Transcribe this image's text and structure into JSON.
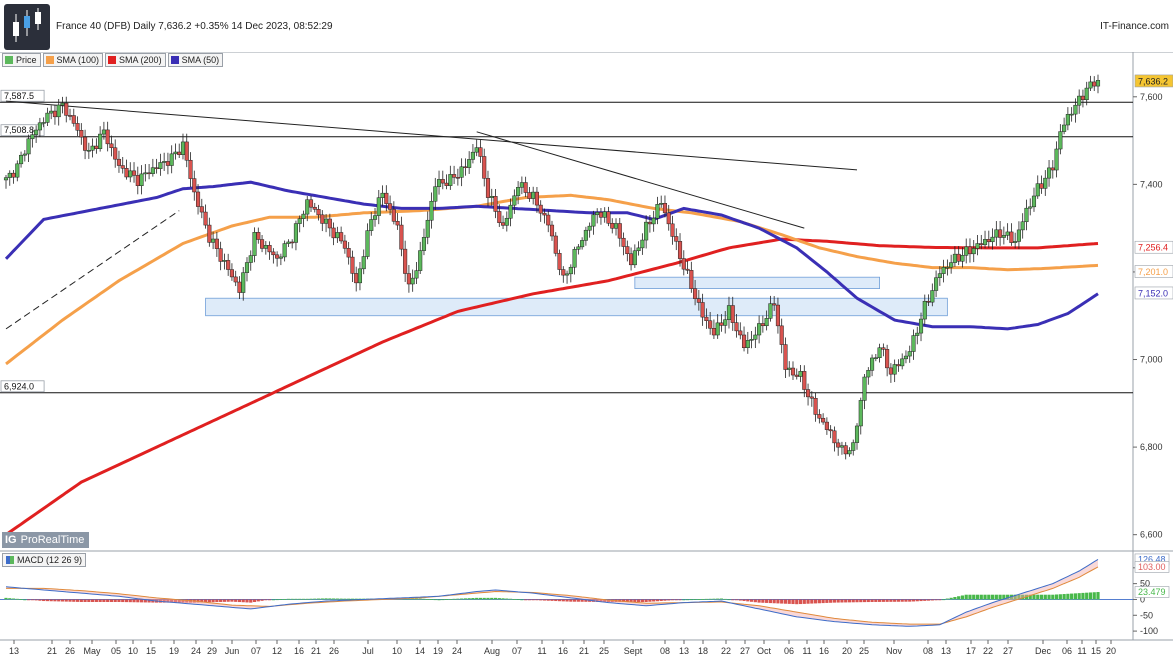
{
  "header": {
    "title": "France 40 (DFB) Daily 7,636.2 +0.35% 14 Dec 2023, 08:52:29",
    "brand": "IT-Finance.com",
    "watermark": "ProRealTime",
    "watermark_logo": "IG"
  },
  "legend": [
    {
      "label": "Price",
      "color": "#5cb85c"
    },
    {
      "label": "SMA (100)",
      "color": "#f5a04a"
    },
    {
      "label": "SMA (200)",
      "color": "#e02020"
    },
    {
      "label": "SMA (50)",
      "color": "#3a2fb5"
    }
  ],
  "colors": {
    "up": "#5cb85c",
    "down": "#d9534f",
    "sma50": "#3a2fb5",
    "sma100": "#f5a04a",
    "sma200": "#e02020",
    "macd": "#3d6cc9",
    "signal": "#e08a3c",
    "zone": "#d6e6f8"
  },
  "chart_data": [
    {
      "type": "candlestick",
      "title": "France 40 (DFB) Daily",
      "y_ticks": [
        6600,
        6800,
        7000,
        7200,
        7400,
        7600
      ],
      "y_tick_labels": [
        "6,600",
        "6,800",
        "7,000",
        "7,200",
        "7,400",
        "7,600"
      ],
      "ylim": [
        6565,
        7700
      ],
      "x_labels": [
        "13",
        "21",
        "26",
        "May",
        "05",
        "10",
        "15",
        "19",
        "24",
        "29",
        "Jun",
        "07",
        "12",
        "16",
        "21",
        "26",
        "Jul",
        "10",
        "14",
        "19",
        "24",
        "Aug",
        "07",
        "11",
        "16",
        "21",
        "25",
        "Sept",
        "08",
        "13",
        "18",
        "22",
        "27",
        "Oct",
        "06",
        "11",
        "16",
        "20",
        "25",
        "Nov",
        "08",
        "13",
        "17",
        "22",
        "27",
        "Dec",
        "06",
        "11",
        "15",
        "20"
      ],
      "price_label": "7,636.2",
      "horizontal_levels": [
        {
          "label": "7,587.5",
          "value": 7587.5
        },
        {
          "label": "7,508.8",
          "value": 7508.8
        },
        {
          "label": "6,924.0",
          "value": 6924.0
        }
      ],
      "sma_labels": [
        {
          "series": "SMA (200)",
          "label": "7,256.4",
          "value": 7256.4
        },
        {
          "series": "SMA (100)",
          "label": "7,201.0",
          "value": 7201.0
        },
        {
          "series": "SMA (50)",
          "label": "7,152.0",
          "value": 7152.0
        }
      ],
      "support_zones": [
        {
          "low": 7100,
          "high": 7140
        },
        {
          "low": 7162,
          "high": 7188
        }
      ],
      "trendlines": [
        {
          "from": [
            0,
            7590
          ],
          "to": [
            226,
            7433
          ]
        },
        {
          "from": [
            125,
            7520
          ],
          "to": [
            212,
            7300
          ]
        },
        {
          "from": [
            0,
            7070
          ],
          "to": [
            46,
            7340
          ]
        }
      ],
      "ohlc": [],
      "sma50": [
        [
          0,
          7230
        ],
        [
          10,
          7320
        ],
        [
          25,
          7345
        ],
        [
          40,
          7370
        ],
        [
          47,
          7390
        ],
        [
          55,
          7395
        ],
        [
          65,
          7405
        ],
        [
          75,
          7385
        ],
        [
          85,
          7370
        ],
        [
          95,
          7355
        ],
        [
          105,
          7345
        ],
        [
          115,
          7345
        ],
        [
          125,
          7350
        ],
        [
          135,
          7345
        ],
        [
          145,
          7340
        ],
        [
          155,
          7335
        ],
        [
          165,
          7335
        ],
        [
          172,
          7320
        ],
        [
          180,
          7345
        ],
        [
          190,
          7330
        ],
        [
          200,
          7300
        ],
        [
          210,
          7255
        ],
        [
          218,
          7200
        ],
        [
          226,
          7140
        ],
        [
          236,
          7090
        ],
        [
          246,
          7075
        ],
        [
          256,
          7075
        ],
        [
          266,
          7070
        ],
        [
          274,
          7080
        ],
        [
          282,
          7105
        ],
        [
          290,
          7150
        ]
      ],
      "sma100": [
        [
          0,
          6990
        ],
        [
          15,
          7090
        ],
        [
          30,
          7180
        ],
        [
          47,
          7265
        ],
        [
          60,
          7305
        ],
        [
          70,
          7325
        ],
        [
          82,
          7325
        ],
        [
          95,
          7335
        ],
        [
          110,
          7340
        ],
        [
          125,
          7350
        ],
        [
          138,
          7370
        ],
        [
          150,
          7375
        ],
        [
          160,
          7365
        ],
        [
          172,
          7345
        ],
        [
          182,
          7335
        ],
        [
          195,
          7315
        ],
        [
          206,
          7285
        ],
        [
          216,
          7255
        ],
        [
          226,
          7235
        ],
        [
          236,
          7220
        ],
        [
          246,
          7210
        ],
        [
          256,
          7210
        ],
        [
          266,
          7205
        ],
        [
          276,
          7208
        ],
        [
          290,
          7215
        ]
      ],
      "sma200": [
        [
          0,
          6600
        ],
        [
          20,
          6720
        ],
        [
          40,
          6800
        ],
        [
          60,
          6880
        ],
        [
          80,
          6960
        ],
        [
          100,
          7040
        ],
        [
          120,
          7110
        ],
        [
          140,
          7150
        ],
        [
          160,
          7180
        ],
        [
          178,
          7220
        ],
        [
          192,
          7255
        ],
        [
          206,
          7275
        ],
        [
          218,
          7270
        ],
        [
          232,
          7260
        ],
        [
          246,
          7256
        ],
        [
          260,
          7255
        ],
        [
          274,
          7255
        ],
        [
          290,
          7265
        ]
      ]
    },
    {
      "type": "bar",
      "title": "MACD (12 26 9)",
      "y_ticks": [
        100,
        50,
        0,
        -50,
        -100
      ],
      "y_tick_labels": [
        "100",
        "50",
        "0",
        "-50",
        "-100"
      ],
      "ylim": [
        -125,
        150
      ],
      "value_labels": [
        {
          "label": "126.48",
          "series": "MACD",
          "value": 126.48
        },
        {
          "label": "103.00",
          "series": "Signal",
          "value": 103.0
        },
        {
          "label": "23.479",
          "series": "Histogram",
          "value": 23.479
        }
      ],
      "macd": [
        [
          0,
          40
        ],
        [
          10,
          30
        ],
        [
          20,
          20
        ],
        [
          30,
          10
        ],
        [
          40,
          -5
        ],
        [
          50,
          -15
        ],
        [
          60,
          -25
        ],
        [
          65,
          -30
        ],
        [
          75,
          -15
        ],
        [
          85,
          -5
        ],
        [
          95,
          0
        ],
        [
          105,
          5
        ],
        [
          115,
          10
        ],
        [
          125,
          25
        ],
        [
          130,
          30
        ],
        [
          140,
          20
        ],
        [
          150,
          5
        ],
        [
          160,
          -10
        ],
        [
          170,
          -20
        ],
        [
          180,
          -10
        ],
        [
          190,
          -5
        ],
        [
          200,
          -30
        ],
        [
          210,
          -55
        ],
        [
          220,
          -70
        ],
        [
          230,
          -80
        ],
        [
          240,
          -85
        ],
        [
          248,
          -80
        ],
        [
          255,
          -40
        ],
        [
          262,
          -10
        ],
        [
          270,
          20
        ],
        [
          278,
          50
        ],
        [
          285,
          90
        ],
        [
          290,
          126.48
        ]
      ],
      "signal": [
        [
          0,
          35
        ],
        [
          10,
          35
        ],
        [
          20,
          28
        ],
        [
          30,
          18
        ],
        [
          40,
          5
        ],
        [
          50,
          -5
        ],
        [
          60,
          -18
        ],
        [
          70,
          -22
        ],
        [
          80,
          -12
        ],
        [
          90,
          -5
        ],
        [
          100,
          0
        ],
        [
          110,
          5
        ],
        [
          120,
          15
        ],
        [
          130,
          25
        ],
        [
          140,
          22
        ],
        [
          150,
          12
        ],
        [
          160,
          -2
        ],
        [
          170,
          -12
        ],
        [
          180,
          -10
        ],
        [
          190,
          -8
        ],
        [
          200,
          -20
        ],
        [
          210,
          -40
        ],
        [
          220,
          -60
        ],
        [
          230,
          -72
        ],
        [
          240,
          -78
        ],
        [
          248,
          -78
        ],
        [
          255,
          -55
        ],
        [
          262,
          -25
        ],
        [
          270,
          5
        ],
        [
          278,
          35
        ],
        [
          285,
          70
        ],
        [
          290,
          103.0
        ]
      ]
    }
  ]
}
